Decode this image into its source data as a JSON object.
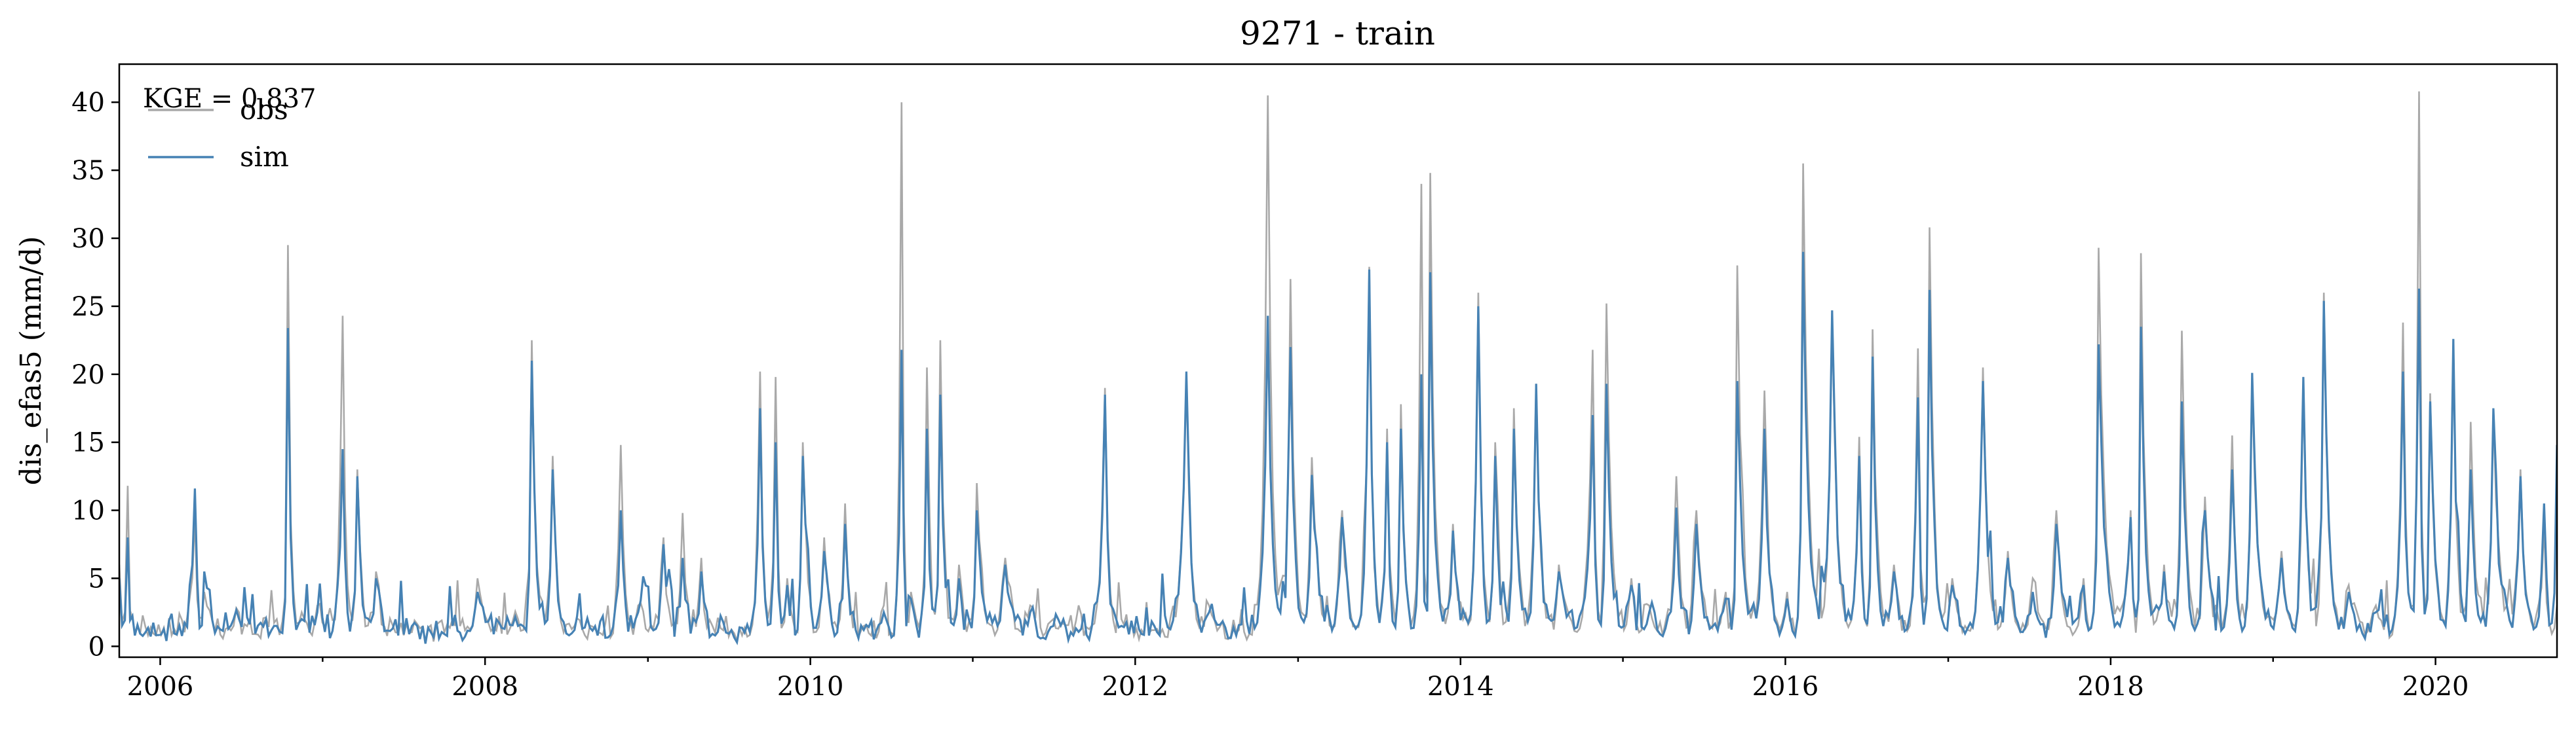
{
  "chart_data": {
    "type": "line",
    "title": "9271 - train",
    "xlabel": "",
    "ylabel": "dis_efas5 (mm/d)",
    "xlim": [
      "2005-10-01",
      "2020-09-30"
    ],
    "ylim": [
      -0.8,
      42.8
    ],
    "yticks": [
      0,
      5,
      10,
      15,
      20,
      25,
      30,
      35,
      40
    ],
    "xticks": [
      "2006",
      "2008",
      "2010",
      "2012",
      "2014",
      "2016",
      "2018",
      "2020"
    ],
    "grid": false,
    "legend": {
      "placement": "top-left",
      "entries": [
        "obs",
        "sim"
      ]
    },
    "annotation": "KGE = 0.837",
    "colors": {
      "obs": "#a9a9a9",
      "sim": "#4682b4"
    },
    "series": [
      {
        "name": "obs",
        "x": [
          "2005-10-01",
          "2005-10-20",
          "2005-11-05",
          "2006-01-15",
          "2006-03-20",
          "2006-04-10",
          "2006-06-15",
          "2006-09-20",
          "2006-10-15",
          "2006-11-15",
          "2006-12-20",
          "2007-02-15",
          "2007-03-20",
          "2007-05-01",
          "2007-06-20",
          "2007-08-20",
          "2007-10-20",
          "2007-12-15",
          "2008-03-15",
          "2008-04-15",
          "2008-06-01",
          "2008-07-20",
          "2008-09-10",
          "2008-11-01",
          "2008-12-10",
          "2009-02-05",
          "2009-03-20",
          "2009-05-01",
          "2009-06-01",
          "2009-07-20",
          "2009-09-10",
          "2009-10-15",
          "2009-11-10",
          "2009-12-15",
          "2010-02-01",
          "2010-03-20",
          "2010-05-01",
          "2010-06-15",
          "2010-07-25",
          "2010-08-15",
          "2010-09-20",
          "2010-10-20",
          "2010-12-01",
          "2011-01-10",
          "2011-03-15",
          "2011-05-10",
          "2011-07-01",
          "2011-08-15",
          "2011-10-25",
          "2011-12-01",
          "2012-02-01",
          "2012-04-25",
          "2012-06-15",
          "2012-08-15",
          "2012-10-25",
          "2012-12-15",
          "2013-02-01",
          "2013-04-10",
          "2013-06-10",
          "2013-07-20",
          "2013-08-20",
          "2013-10-05",
          "2013-10-25",
          "2013-12-15",
          "2014-02-10",
          "2014-03-20",
          "2014-05-01",
          "2014-06-20",
          "2014-08-10",
          "2014-10-25",
          "2014-11-25",
          "2015-01-20",
          "2015-03-01",
          "2015-05-01",
          "2015-06-15",
          "2015-08-20",
          "2015-09-15",
          "2015-11-15",
          "2016-01-05",
          "2016-02-10",
          "2016-04-15",
          "2016-06-15",
          "2016-07-15",
          "2016-09-01",
          "2016-10-25",
          "2016-11-20",
          "2017-01-10",
          "2017-03-20",
          "2017-05-15",
          "2017-07-10",
          "2017-09-01",
          "2017-11-01",
          "2017-12-05",
          "2018-02-15",
          "2018-03-10",
          "2018-05-01",
          "2018-06-10",
          "2018-08-01",
          "2018-10-01",
          "2018-11-15",
          "2019-01-20",
          "2019-03-10",
          "2019-04-25",
          "2019-06-20",
          "2019-08-20",
          "2019-10-20",
          "2019-11-25",
          "2019-12-20",
          "2020-02-10",
          "2020-03-20",
          "2020-05-10",
          "2020-07-10",
          "2020-09-01",
          "2020-09-30"
        ],
        "values": [
          6.0,
          11.8,
          1.0,
          0.5,
          9.5,
          4.0,
          1.5,
          2.0,
          29.5,
          2.5,
          3.0,
          24.3,
          13.0,
          5.5,
          1.0,
          0.3,
          2.0,
          5.0,
          2.0,
          22.5,
          14.0,
          1.5,
          1.0,
          14.8,
          3.0,
          8.0,
          9.8,
          6.5,
          1.0,
          0.4,
          20.2,
          19.8,
          5.0,
          15.0,
          8.0,
          10.5,
          1.5,
          3.0,
          40.0,
          4.0,
          20.5,
          22.5,
          6.0,
          12.0,
          6.5,
          3.0,
          2.0,
          1.0,
          19.0,
          2.0,
          1.0,
          20.0,
          3.0,
          1.0,
          40.5,
          27.0,
          13.9,
          10.0,
          27.9,
          16.0,
          17.8,
          34.0,
          34.8,
          9.0,
          26.0,
          15.0,
          17.5,
          19.3,
          6.0,
          21.8,
          25.2,
          5.0,
          3.0,
          12.5,
          10.0,
          4.0,
          28.0,
          18.8,
          4.0,
          35.5,
          24.5,
          15.4,
          23.3,
          6.0,
          21.9,
          30.8,
          5.0,
          20.5,
          7.0,
          5.0,
          10.0,
          5.0,
          29.3,
          10.0,
          28.9,
          6.0,
          23.2,
          11.0,
          15.5,
          19.8,
          7.0,
          19.8,
          26.0,
          4.5,
          3.0,
          23.8,
          40.8,
          18.6,
          22.5,
          16.5,
          17.3,
          13.0,
          9.0,
          3.0
        ]
      },
      {
        "name": "sim",
        "x": [
          "2005-10-01",
          "2005-10-20",
          "2005-11-05",
          "2006-01-15",
          "2006-03-20",
          "2006-04-10",
          "2006-06-15",
          "2006-09-20",
          "2006-10-15",
          "2006-11-15",
          "2006-12-20",
          "2007-02-15",
          "2007-03-20",
          "2007-05-01",
          "2007-06-20",
          "2007-08-20",
          "2007-10-20",
          "2007-12-15",
          "2008-03-15",
          "2008-04-15",
          "2008-06-01",
          "2008-07-20",
          "2008-09-10",
          "2008-11-01",
          "2008-12-10",
          "2009-02-05",
          "2009-03-20",
          "2009-05-01",
          "2009-06-01",
          "2009-07-20",
          "2009-09-10",
          "2009-10-15",
          "2009-11-10",
          "2009-12-15",
          "2010-02-01",
          "2010-03-20",
          "2010-05-01",
          "2010-06-15",
          "2010-07-25",
          "2010-08-15",
          "2010-09-20",
          "2010-10-20",
          "2010-12-01",
          "2011-01-10",
          "2011-03-15",
          "2011-05-10",
          "2011-07-01",
          "2011-08-15",
          "2011-10-25",
          "2011-12-01",
          "2012-02-01",
          "2012-04-25",
          "2012-06-15",
          "2012-08-15",
          "2012-10-25",
          "2012-12-15",
          "2013-02-01",
          "2013-04-10",
          "2013-06-10",
          "2013-07-20",
          "2013-08-20",
          "2013-10-05",
          "2013-10-25",
          "2013-12-15",
          "2014-02-10",
          "2014-03-20",
          "2014-05-01",
          "2014-06-20",
          "2014-08-10",
          "2014-10-25",
          "2014-11-25",
          "2015-01-20",
          "2015-03-01",
          "2015-05-01",
          "2015-06-15",
          "2015-08-20",
          "2015-09-15",
          "2015-11-15",
          "2016-01-05",
          "2016-02-10",
          "2016-04-15",
          "2016-06-15",
          "2016-07-15",
          "2016-09-01",
          "2016-10-25",
          "2016-11-20",
          "2017-01-10",
          "2017-03-20",
          "2017-05-15",
          "2017-07-10",
          "2017-09-01",
          "2017-11-01",
          "2017-12-05",
          "2018-02-15",
          "2018-03-10",
          "2018-05-01",
          "2018-06-10",
          "2018-08-01",
          "2018-10-01",
          "2018-11-15",
          "2019-01-20",
          "2019-03-10",
          "2019-04-25",
          "2019-06-20",
          "2019-08-20",
          "2019-10-20",
          "2019-11-25",
          "2019-12-20",
          "2020-02-10",
          "2020-03-20",
          "2020-05-10",
          "2020-07-10",
          "2020-09-01",
          "2020-09-30"
        ],
        "values": [
          5.0,
          8.0,
          0.8,
          0.4,
          11.6,
          5.5,
          2.0,
          1.5,
          23.4,
          2.0,
          2.5,
          14.5,
          12.5,
          5.0,
          0.8,
          0.2,
          1.5,
          4.0,
          1.5,
          21.0,
          13.0,
          1.2,
          0.8,
          10.0,
          2.5,
          7.5,
          6.5,
          5.5,
          0.8,
          0.3,
          17.5,
          15.0,
          4.5,
          14.0,
          7.0,
          9.0,
          1.2,
          2.5,
          21.8,
          3.5,
          16.0,
          18.5,
          5.0,
          10.0,
          6.0,
          2.5,
          1.5,
          0.8,
          18.5,
          1.5,
          0.8,
          20.2,
          2.5,
          0.8,
          24.3,
          22.0,
          12.6,
          9.5,
          27.7,
          15.0,
          16.0,
          20.0,
          27.5,
          8.5,
          25.0,
          14.0,
          16.0,
          19.3,
          5.5,
          17.0,
          19.3,
          4.5,
          2.5,
          10.2,
          9.0,
          3.5,
          19.5,
          16.0,
          3.5,
          29.0,
          24.7,
          14.0,
          21.3,
          5.5,
          18.3,
          26.2,
          4.5,
          19.5,
          6.5,
          4.0,
          9.0,
          4.5,
          22.2,
          9.5,
          23.5,
          5.5,
          18.0,
          10.0,
          13.0,
          20.1,
          6.5,
          19.8,
          25.4,
          4.0,
          2.5,
          20.2,
          26.3,
          18.0,
          22.6,
          13.0,
          17.5,
          12.5,
          10.5,
          14.8
        ]
      }
    ]
  }
}
